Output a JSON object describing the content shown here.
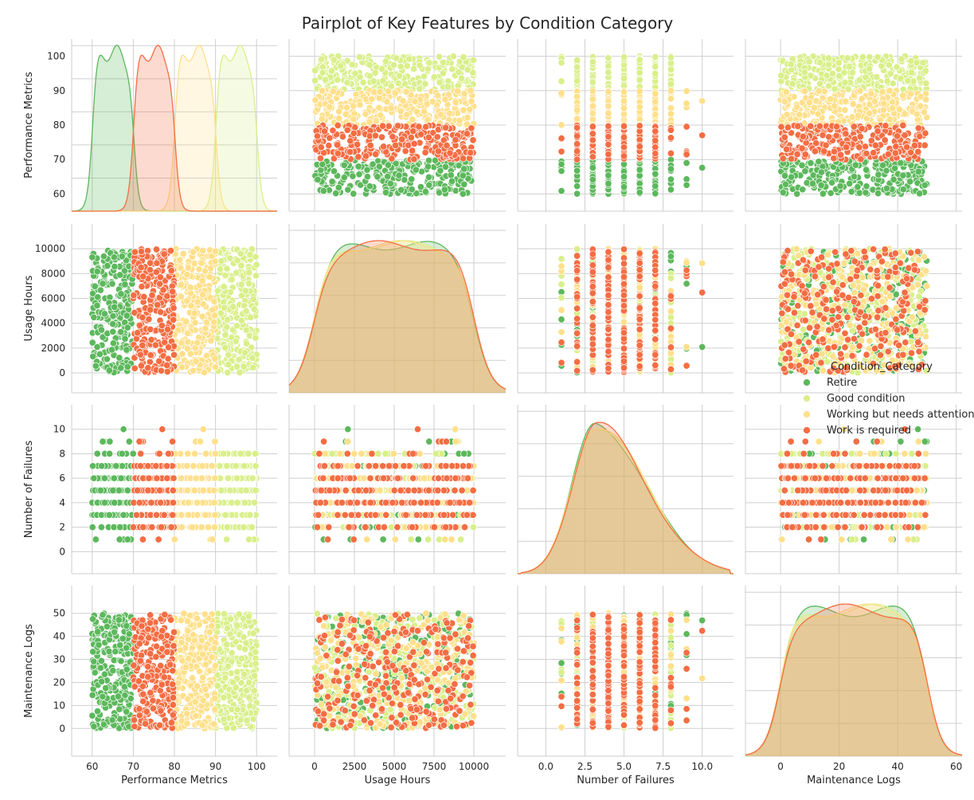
{
  "chart_data": {
    "type": "scatter",
    "subtype": "pairplot",
    "title": "Pairplot of Key Features by Condition Category",
    "features": [
      {
        "key": "perf",
        "label": "Performance Metrics",
        "range": [
          55,
          105
        ],
        "ticks": [
          60,
          70,
          80,
          90,
          100
        ],
        "tick_labels": [
          "60",
          "70",
          "80",
          "90",
          "100"
        ]
      },
      {
        "key": "usage",
        "label": "Usage Hours",
        "range": [
          -1600,
          12000
        ],
        "ticks": [
          0,
          2000,
          4000,
          6000,
          8000,
          10000
        ],
        "x_ticks": [
          0,
          2500,
          5000,
          7500,
          10000
        ],
        "tick_labels": [
          "0",
          "2000",
          "4000",
          "6000",
          "8000",
          "10000"
        ],
        "x_tick_labels": [
          "0",
          "2500",
          "5000",
          "7500",
          "10000"
        ]
      },
      {
        "key": "fail",
        "label": "Number of Failures",
        "range": [
          -1.8,
          12
        ],
        "ticks": [
          0,
          2,
          4,
          6,
          8,
          10
        ],
        "x_ticks": [
          0,
          2.5,
          5,
          7.5,
          10
        ],
        "tick_labels": [
          "0",
          "2",
          "4",
          "6",
          "8",
          "10"
        ],
        "x_tick_labels": [
          "0.0",
          "2.5",
          "5.0",
          "7.5",
          "10.0"
        ]
      },
      {
        "key": "logs",
        "label": "Maintenance Logs",
        "range": [
          -12,
          62
        ],
        "ticks": [
          0,
          10,
          20,
          30,
          40,
          50
        ],
        "x_ticks": [
          0,
          20,
          40,
          60
        ],
        "tick_labels": [
          "0",
          "10",
          "20",
          "30",
          "40",
          "50"
        ],
        "x_tick_labels": [
          "0",
          "20",
          "40",
          "60"
        ]
      }
    ],
    "hue": "Condition_Category",
    "series": [
      {
        "name": "Retire",
        "color": "#5cb85c",
        "perf_range": [
          60,
          70
        ]
      },
      {
        "name": "Good condition",
        "color": "#d9ef8b",
        "perf_range": [
          90,
          100
        ]
      },
      {
        "name": "Working but needs attention",
        "color": "#fee08b",
        "perf_range": [
          80,
          90
        ]
      },
      {
        "name": "Work is required",
        "color": "#f46d43",
        "perf_range": [
          70,
          80
        ]
      }
    ],
    "diagonal_kde": {
      "perf": {
        "Retire": [
          60,
          70,
          0.98
        ],
        "Work is required": [
          70,
          80,
          1.0
        ],
        "Working but needs attention": [
          80,
          90,
          0.99
        ],
        "Good condition": [
          90,
          100,
          0.99
        ]
      },
      "usage_peak_density_relative": 0.98,
      "fail_mode": 3,
      "logs_shape": "uniform 0-50"
    },
    "usage_range": [
      0,
      10000
    ],
    "failures_values": [
      0,
      1,
      2,
      3,
      4,
      5,
      6,
      7,
      8,
      9,
      10
    ],
    "logs_range": [
      0,
      50
    ],
    "grid": true,
    "legend_placement": "right",
    "legend_title": "Condition_Category"
  }
}
